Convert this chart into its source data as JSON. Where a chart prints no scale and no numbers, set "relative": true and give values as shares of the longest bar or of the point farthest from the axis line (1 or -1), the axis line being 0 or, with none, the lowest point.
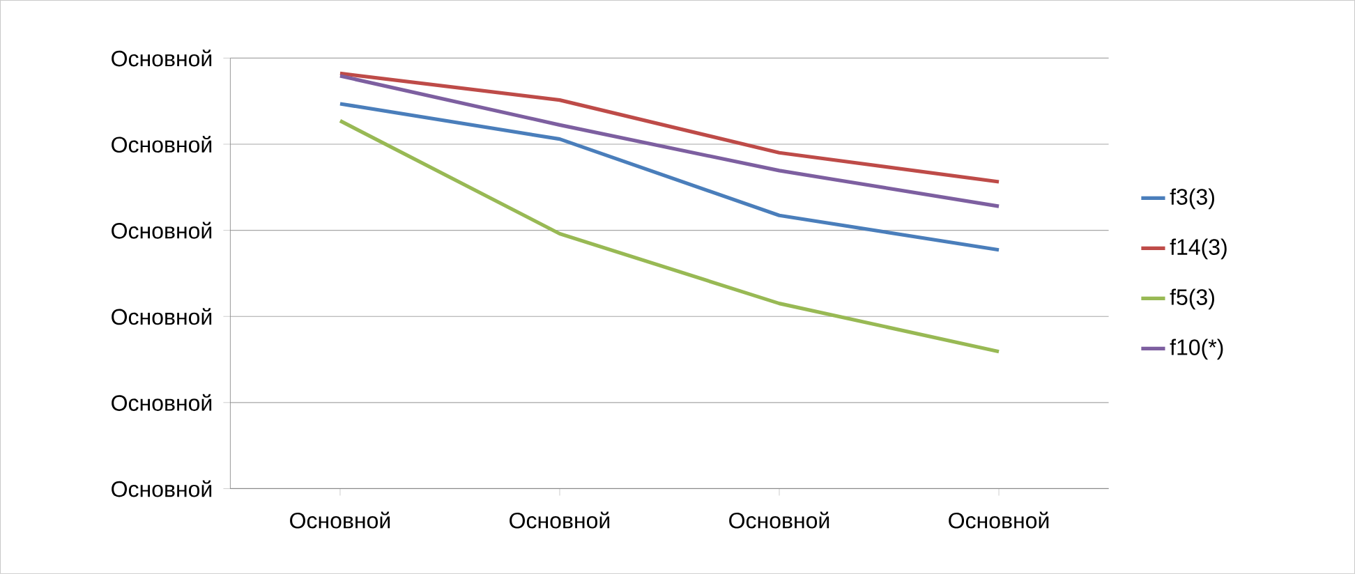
{
  "chart_data": {
    "type": "line",
    "relative": true,
    "categories": [
      "Основной",
      "Основной",
      "Основной",
      "Основной"
    ],
    "series": [
      {
        "name": "f3(3)",
        "color": "#4a7ebb",
        "values": [
          0.927,
          0.842,
          0.658,
          0.575
        ]
      },
      {
        "name": "f14(3)",
        "color": "#be4b48",
        "values": [
          1,
          0.936,
          0.809,
          0.739
        ]
      },
      {
        "name": "f5(3)",
        "color": "#98b954",
        "values": [
          0.886,
          0.614,
          0.446,
          0.33
        ]
      },
      {
        "name": "f10(*)",
        "color": "#7d5fa0",
        "values": [
          0.994,
          0.876,
          0.766,
          0.68
        ]
      }
    ],
    "annotations": [
      "Основной",
      "Основной",
      "Основной",
      "Основной",
      "Основной",
      "Основной"
    ],
    "grid": "y",
    "legend": "right",
    "marker": "none",
    "line_style": "solid"
  }
}
